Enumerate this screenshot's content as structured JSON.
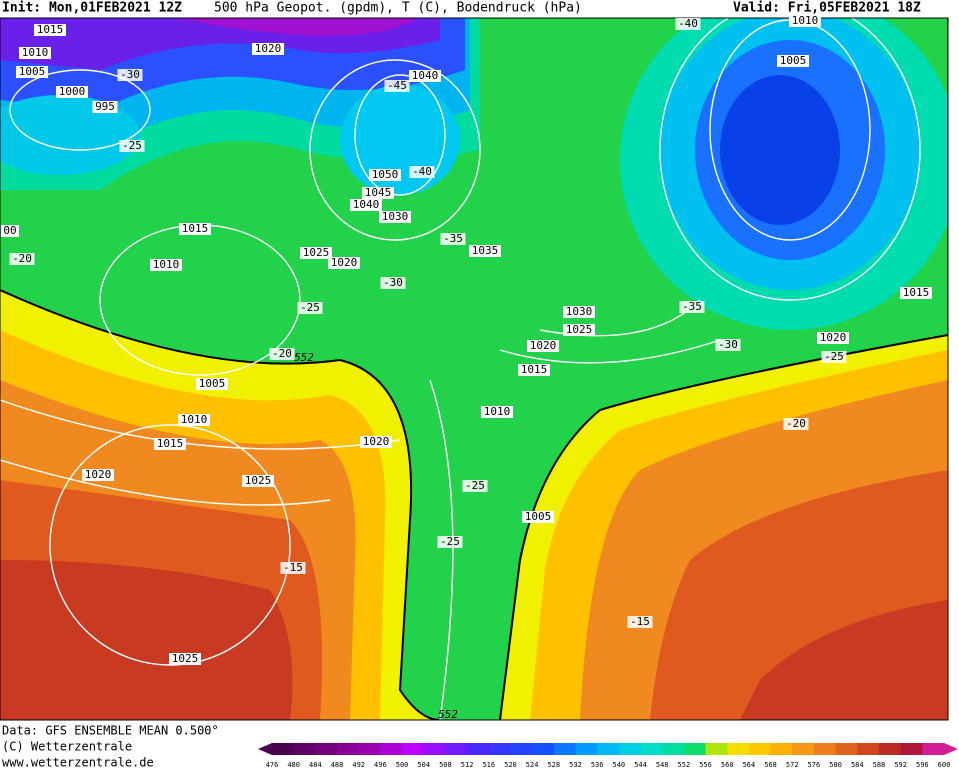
{
  "header": {
    "init": "Init: Mon,01FEB2021 12Z",
    "title": "500 hPa Geopot. (gpdm), T (C), Bodendruck (hPa)",
    "valid": "Valid: Fri,05FEB2021 18Z"
  },
  "map_labels": [
    "1015",
    "1010",
    "1005",
    "1000",
    "995",
    "-30",
    "-25",
    "1020",
    "1040",
    "-45",
    "1050",
    "-40",
    "1045",
    "1040",
    "1030",
    "00",
    "1015",
    "-20",
    "1010",
    "1025",
    "1020",
    "-35",
    "1035",
    "-30",
    "-25",
    "-20",
    "552",
    "1005",
    "1010",
    "1015",
    "1020",
    "1025",
    "1020",
    "1030",
    "1025",
    "1020",
    "1015",
    "1010",
    "-25",
    "1005",
    "-25",
    "-15",
    "1025",
    "552",
    "-40",
    "1010",
    "1005",
    "-35",
    "-30",
    "1015",
    "1020",
    "-25",
    "-20",
    "-15"
  ],
  "footer": {
    "source": "Data: GFS ENSEMBLE MEAN 0.500°",
    "copyright": "(C) Wetterzentrale",
    "url": "www.wetterzentrale.de"
  },
  "colorbar": {
    "ticks": [
      476,
      480,
      484,
      488,
      492,
      496,
      500,
      504,
      508,
      512,
      516,
      520,
      524,
      528,
      532,
      536,
      540,
      544,
      548,
      552,
      556,
      560,
      564,
      568,
      572,
      576,
      580,
      584,
      588,
      592,
      596,
      600
    ]
  }
}
